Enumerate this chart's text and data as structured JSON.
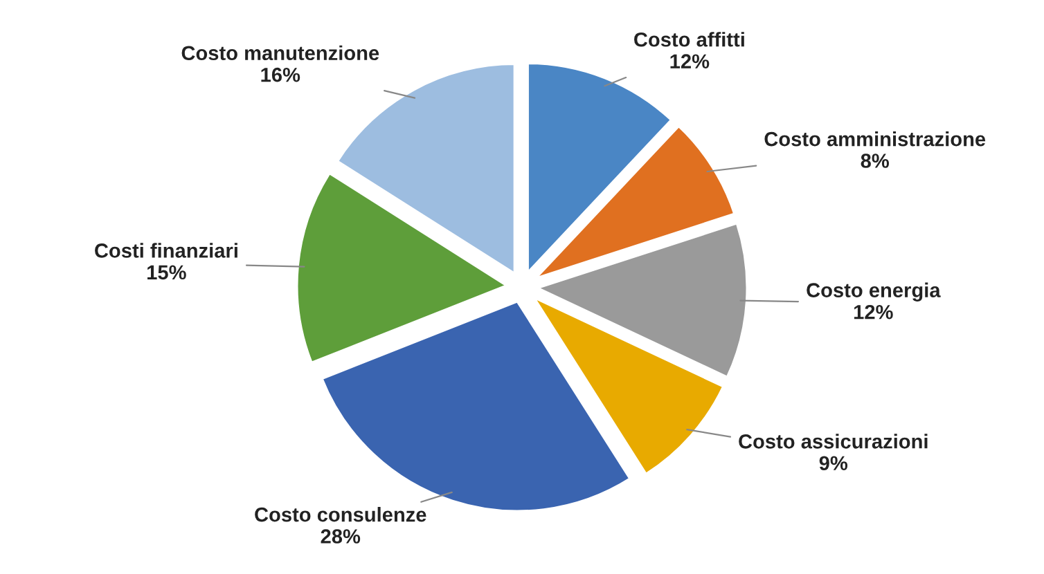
{
  "chart_data": {
    "type": "pie",
    "categories": [
      "Costo affitti",
      "Costo amministrazione",
      "Costo energia",
      "Costo assicurazioni",
      "Costo consulenze",
      "Costi finanziari",
      "Costo manutenzione"
    ],
    "values": [
      12,
      8,
      12,
      9,
      28,
      15,
      16
    ],
    "value_labels": [
      "12%",
      "8%",
      "12%",
      "9%",
      "28%",
      "15%",
      "16%"
    ],
    "colors": [
      "#4a86c5",
      "#e07020",
      "#9a9a9a",
      "#e8aa00",
      "#3a64b0",
      "#5e9e3a",
      "#9dbde0"
    ],
    "legend": false
  }
}
